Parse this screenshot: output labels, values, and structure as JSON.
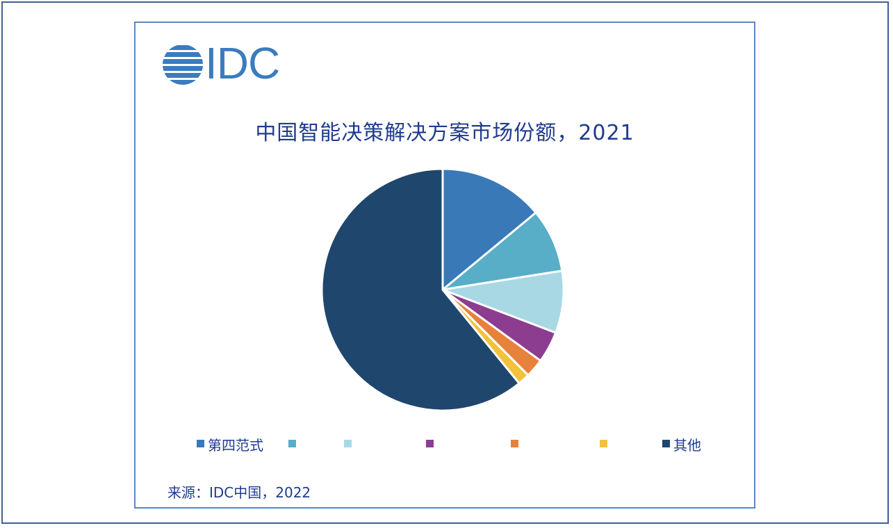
{
  "logo": {
    "text": "IDC"
  },
  "chart_data": {
    "type": "pie",
    "title": "中国智能决策解决方案市场份额，2021",
    "slices": [
      {
        "label": "第四范式",
        "value": 14.0,
        "color": "#3a79b8"
      },
      {
        "label": "",
        "value": 8.5,
        "color": "#58aec7"
      },
      {
        "label": "",
        "value": 8.3,
        "color": "#a9d8e5"
      },
      {
        "label": "",
        "value": 4.2,
        "color": "#8c3d8f"
      },
      {
        "label": "",
        "value": 2.5,
        "color": "#e6823c"
      },
      {
        "label": "",
        "value": 1.6,
        "color": "#f2c23c"
      },
      {
        "label": "其他",
        "value": 60.9,
        "color": "#1f466d"
      }
    ],
    "legend_position": "bottom",
    "source": "来源：IDC中国，2022"
  }
}
